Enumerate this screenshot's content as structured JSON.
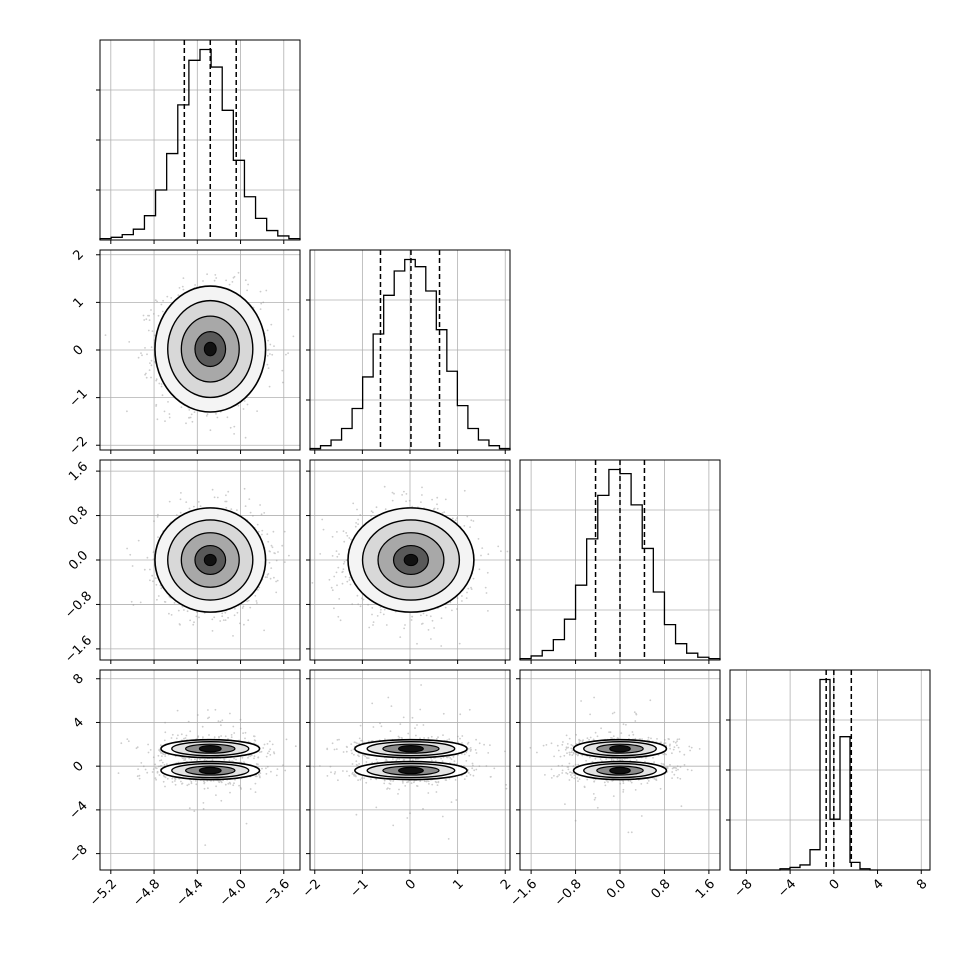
{
  "chart_data": {
    "type": "corner",
    "parameters": [
      {
        "index": 0,
        "range": [
          -5.3,
          -3.45
        ],
        "ticks": [
          -5.2,
          -4.8,
          -4.4,
          -4.0,
          -3.6
        ],
        "tick_labels": [
          "−5.2",
          "−4.8",
          "−4.4",
          "−4.0",
          "−3.6"
        ],
        "quantiles": [
          -4.52,
          -4.28,
          -4.04
        ],
        "hist_counts": [
          1,
          2,
          4,
          8,
          18,
          37,
          64,
          100,
          133,
          141,
          128,
          96,
          59,
          32,
          16,
          7,
          3,
          1
        ]
      },
      {
        "index": 1,
        "range": [
          -2.1,
          2.1
        ],
        "ticks": [
          -2,
          -1,
          0,
          1,
          2
        ],
        "tick_labels": [
          "−2",
          "−1",
          "0",
          "1",
          "2"
        ],
        "quantiles": [
          -0.62,
          0.02,
          0.62
        ],
        "hist_counts": [
          1,
          3,
          7,
          15,
          29,
          51,
          81,
          108,
          125,
          133,
          128,
          111,
          84,
          55,
          31,
          15,
          7,
          3,
          1
        ]
      },
      {
        "index": 2,
        "range": [
          -1.8,
          1.8
        ],
        "ticks": [
          -1.6,
          -0.8,
          0.0,
          0.8,
          1.6
        ],
        "tick_labels": [
          "−1.6",
          "−0.8",
          "0.0",
          "0.8",
          "1.6"
        ],
        "quantiles": [
          -0.44,
          0.0,
          0.44
        ],
        "hist_counts": [
          1,
          3,
          7,
          15,
          30,
          55,
          89,
          121,
          140,
          137,
          114,
          82,
          50,
          26,
          12,
          5,
          2,
          1
        ]
      },
      {
        "index": 3,
        "range": [
          -9.5,
          8.8
        ],
        "ticks": [
          -8,
          -4,
          0,
          4,
          8
        ],
        "tick_labels": [
          "−8",
          "−4",
          "0",
          "4",
          "8"
        ],
        "quantiles": [
          -0.7,
          0.0,
          1.6
        ],
        "hist_counts": [
          0,
          0,
          0,
          0,
          0,
          1,
          2,
          4,
          16,
          150,
          40,
          105,
          6,
          1,
          0,
          0,
          0,
          0,
          0,
          0
        ]
      }
    ],
    "grid": true,
    "histogram_style": "step",
    "quantile_style": "dashed",
    "title": "",
    "xlabel": "",
    "ylabel": ""
  }
}
